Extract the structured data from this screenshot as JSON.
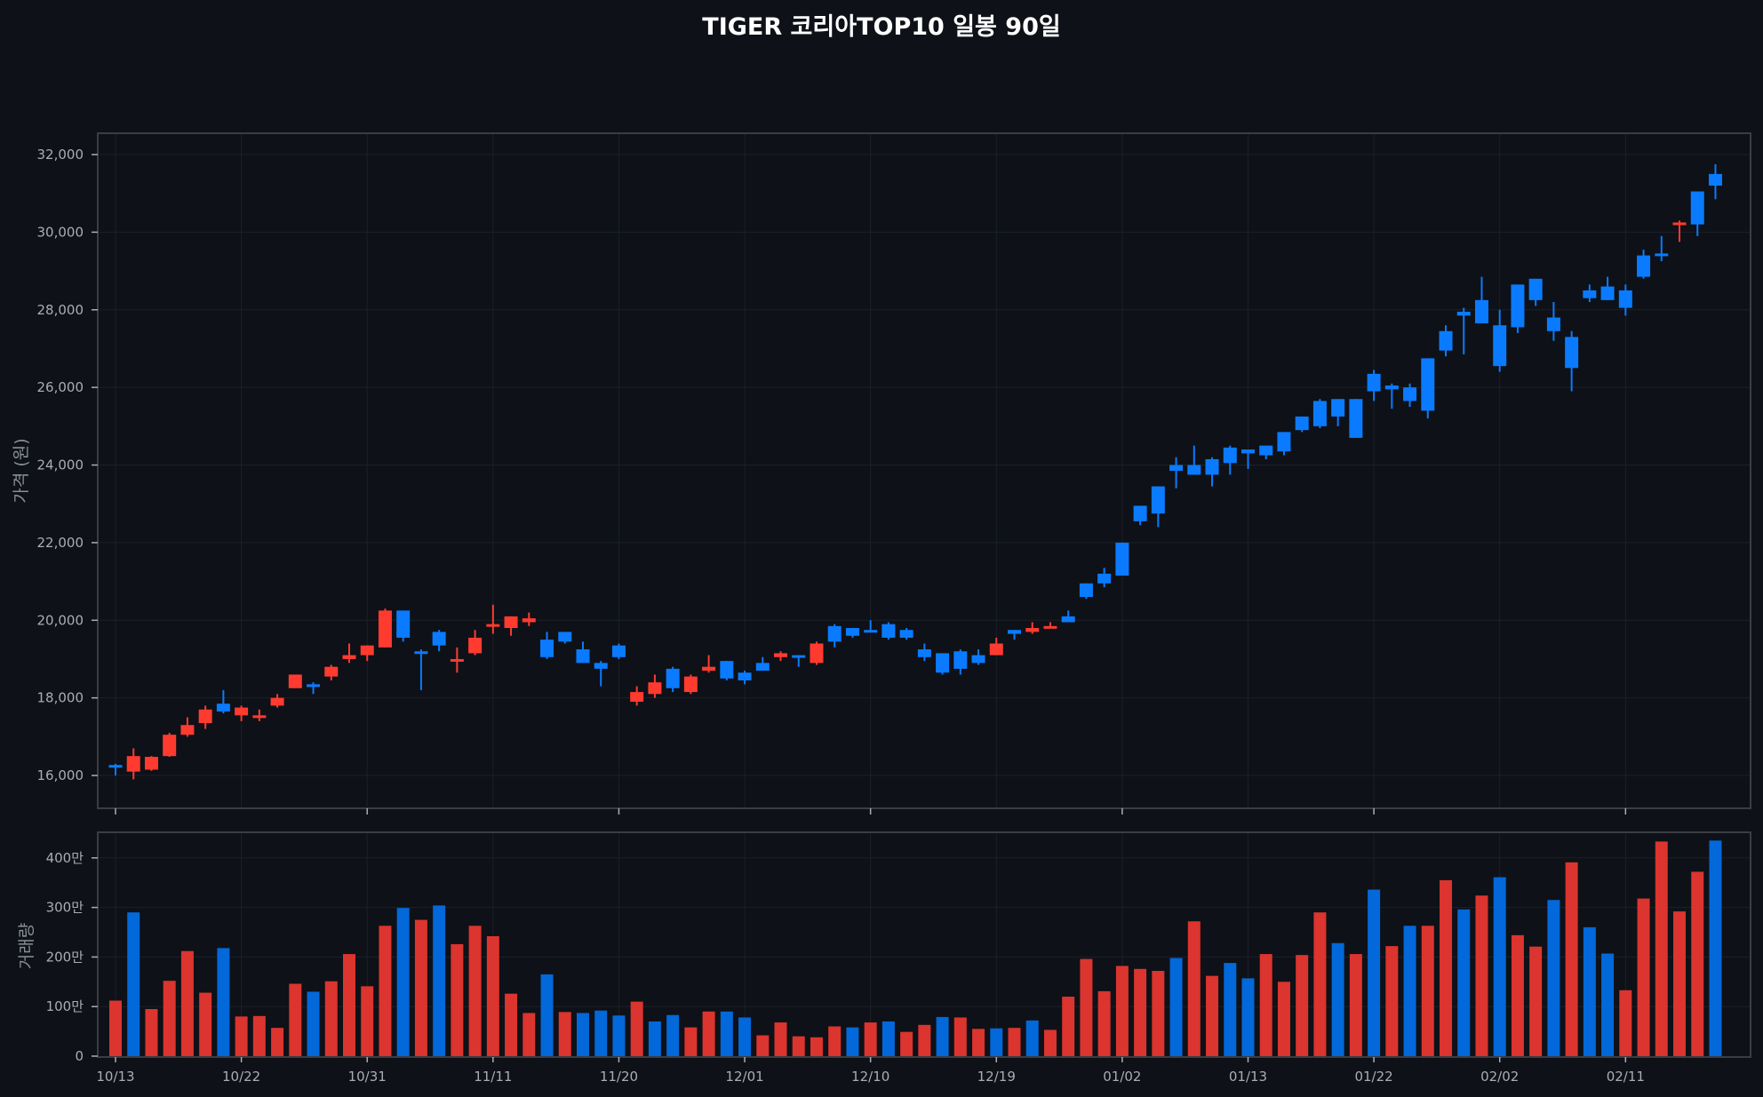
{
  "title": "TIGER 코리아TOP10 일봉 90일",
  "colors": {
    "up": "#ff3b30",
    "down": "#0a7bff",
    "vol_up": "#dc342e",
    "vol_down": "#0368d9",
    "bg": "#0e1117",
    "grid": "#1c2028",
    "frame": "#3a3d42"
  },
  "chart_data": [
    {
      "type": "candlestick",
      "title": "TIGER 코리아TOP10 일봉 90일",
      "ylabel": "가격 (원)",
      "ylim": [
        15200,
        32500
      ],
      "yticks": [
        "16,000",
        "18,000",
        "20,000",
        "22,000",
        "24,000",
        "26,000",
        "28,000",
        "30,000",
        "32,000"
      ],
      "ytick_values": [
        16000,
        18000,
        20000,
        22000,
        24000,
        26000,
        28000,
        30000,
        32000
      ],
      "grid": true,
      "series": [
        {
          "name": "OHLC",
          "ohlc": [
            [
              16270,
              16300,
              16000,
              16220
            ],
            [
              16100,
              16700,
              15900,
              16500
            ],
            [
              16150,
              16500,
              16120,
              16480
            ],
            [
              16500,
              17100,
              16480,
              17050
            ],
            [
              17050,
              17500,
              17000,
              17300
            ],
            [
              17350,
              17800,
              17200,
              17700
            ],
            [
              17850,
              18200,
              17600,
              17650
            ],
            [
              17550,
              17800,
              17400,
              17750
            ],
            [
              17500,
              17700,
              17400,
              17550
            ],
            [
              17800,
              18100,
              17750,
              18000
            ],
            [
              18250,
              18600,
              18250,
              18600
            ],
            [
              18350,
              18400,
              18100,
              18300
            ],
            [
              18550,
              18850,
              18450,
              18800
            ],
            [
              19000,
              19400,
              18900,
              19100
            ],
            [
              19100,
              19350,
              18950,
              19350
            ],
            [
              19300,
              20300,
              19300,
              20250
            ],
            [
              20250,
              20250,
              19450,
              19550
            ],
            [
              19200,
              19250,
              18200,
              19150
            ],
            [
              19700,
              19750,
              19200,
              19350
            ],
            [
              18950,
              19300,
              18650,
              19000
            ],
            [
              19150,
              19750,
              19100,
              19550
            ],
            [
              19850,
              20400,
              19650,
              19900
            ],
            [
              19800,
              20100,
              19600,
              20100
            ],
            [
              19950,
              20200,
              19850,
              20050
            ],
            [
              19500,
              19700,
              19000,
              19050
            ],
            [
              19700,
              19700,
              19400,
              19450
            ],
            [
              19250,
              19450,
              18900,
              18900
            ],
            [
              18900,
              18950,
              18300,
              18750
            ],
            [
              19350,
              19400,
              19000,
              19050
            ],
            [
              17900,
              18300,
              17800,
              18150
            ],
            [
              18100,
              18600,
              18000,
              18400
            ],
            [
              18750,
              18800,
              18150,
              18250
            ],
            [
              18150,
              18600,
              18100,
              18550
            ],
            [
              18700,
              19100,
              18650,
              18800
            ],
            [
              18950,
              18950,
              18450,
              18500
            ],
            [
              18650,
              18700,
              18350,
              18450
            ],
            [
              18900,
              19050,
              18700,
              18700
            ],
            [
              19050,
              19200,
              18950,
              19150
            ],
            [
              19100,
              19100,
              18800,
              19050
            ],
            [
              18900,
              19450,
              18850,
              19400
            ],
            [
              19850,
              19900,
              19300,
              19450
            ],
            [
              19800,
              19800,
              19550,
              19600
            ],
            [
              19750,
              20000,
              19700,
              19700
            ],
            [
              19900,
              19950,
              19500,
              19550
            ],
            [
              19750,
              19800,
              19500,
              19550
            ],
            [
              19250,
              19400,
              18950,
              19050
            ],
            [
              19150,
              19150,
              18600,
              18650
            ],
            [
              19200,
              19250,
              18600,
              18750
            ],
            [
              19100,
              19250,
              18850,
              18900
            ],
            [
              19100,
              19550,
              19100,
              19400
            ],
            [
              19750,
              19750,
              19500,
              19650
            ],
            [
              19700,
              19950,
              19650,
              19800
            ],
            [
              19850,
              19950,
              19800,
              19850
            ],
            [
              20100,
              20250,
              19950,
              19950
            ],
            [
              20950,
              20950,
              20550,
              20600
            ],
            [
              21200,
              21350,
              20850,
              20950
            ],
            [
              22000,
              22000,
              21150,
              21150
            ],
            [
              22950,
              22950,
              22450,
              22550
            ],
            [
              23450,
              23450,
              22400,
              22750
            ],
            [
              24000,
              24200,
              23400,
              23850
            ],
            [
              24000,
              24500,
              23750,
              23750
            ],
            [
              24150,
              24200,
              23450,
              23750
            ],
            [
              24450,
              24500,
              23750,
              24050
            ],
            [
              24400,
              24400,
              23900,
              24300
            ],
            [
              24500,
              24500,
              24150,
              24250
            ],
            [
              24850,
              24850,
              24250,
              24350
            ],
            [
              25250,
              25250,
              24850,
              24900
            ],
            [
              25650,
              25700,
              24950,
              25000
            ],
            [
              25700,
              25700,
              25000,
              25250
            ],
            [
              25700,
              25700,
              24700,
              24700
            ],
            [
              26350,
              26450,
              25650,
              25900
            ],
            [
              26050,
              26100,
              25450,
              25950
            ],
            [
              26000,
              26100,
              25500,
              25650
            ],
            [
              26750,
              26750,
              25200,
              25400
            ],
            [
              27450,
              27600,
              26800,
              26950
            ],
            [
              27950,
              28050,
              26850,
              27850
            ],
            [
              28250,
              28850,
              27650,
              27650
            ],
            [
              27600,
              28000,
              26400,
              26550
            ],
            [
              28650,
              28650,
              27400,
              27550
            ],
            [
              28800,
              28800,
              28100,
              28250
            ],
            [
              27800,
              28200,
              27200,
              27450
            ],
            [
              27300,
              27450,
              25900,
              26500
            ],
            [
              28500,
              28650,
              28200,
              28300
            ],
            [
              28600,
              28850,
              28250,
              28250
            ],
            [
              28500,
              28650,
              27850,
              28050
            ],
            [
              29400,
              29550,
              28800,
              28850
            ],
            [
              29450,
              29900,
              29250,
              29400
            ],
            [
              30200,
              30300,
              29750,
              30250
            ],
            [
              31050,
              31050,
              29900,
              30200
            ],
            [
              31500,
              31750,
              30850,
              31200
            ]
          ]
        }
      ],
      "x_tick_labels": [
        "10/13",
        "10/22",
        "10/31",
        "11/11",
        "11/20",
        "12/01",
        "12/10",
        "12/19",
        "01/02",
        "01/13",
        "01/22",
        "02/02",
        "02/11"
      ],
      "x_tick_indices": [
        0,
        7,
        14,
        21,
        28,
        35,
        42,
        49,
        56,
        63,
        70,
        77,
        84
      ]
    },
    {
      "type": "bar",
      "ylabel": "거래량",
      "yticks": [
        "0",
        "100만",
        "200만",
        "300만",
        "400만"
      ],
      "ytick_values": [
        0,
        100,
        200,
        300,
        400
      ],
      "unit": "만",
      "ylim": [
        0,
        450
      ],
      "series": [
        {
          "name": "거래량",
          "values": [
            112,
            290,
            95,
            152,
            212,
            128,
            218,
            80,
            81,
            57,
            146,
            130,
            151,
            206,
            141,
            263,
            299,
            275,
            304,
            226,
            263,
            242,
            126,
            87,
            165,
            89,
            87,
            92,
            82,
            110,
            70,
            83,
            58,
            90,
            90,
            78,
            42,
            68,
            40,
            38,
            60,
            58,
            68,
            70,
            49,
            63,
            79,
            78,
            55,
            56,
            57,
            72,
            53,
            120,
            196,
            131,
            182,
            176,
            172,
            198,
            272,
            162,
            188,
            157,
            206,
            150,
            204,
            290,
            228,
            206,
            336,
            222,
            263,
            263,
            355,
            296,
            324,
            361,
            244,
            221,
            315,
            391,
            260,
            207,
            133,
            318,
            433,
            292,
            372,
            435
          ],
          "up": [
            1,
            0,
            1,
            1,
            1,
            1,
            0,
            1,
            1,
            1,
            1,
            0,
            1,
            1,
            1,
            1,
            0,
            1,
            0,
            1,
            1,
            1,
            1,
            1,
            0,
            1,
            0,
            0,
            0,
            1,
            0,
            0,
            1,
            1,
            0,
            0,
            1,
            1,
            1,
            1,
            1,
            0,
            1,
            0,
            1,
            1,
            0,
            1,
            1,
            0,
            1,
            0,
            1,
            1,
            1,
            1,
            1,
            1,
            1,
            0,
            1,
            1,
            0,
            0,
            1,
            1,
            1,
            1,
            0,
            1,
            0,
            1,
            0,
            1,
            1,
            0,
            1,
            0,
            1,
            1,
            0,
            1,
            0,
            0,
            1,
            1,
            1,
            1,
            1,
            0
          ]
        }
      ]
    }
  ]
}
